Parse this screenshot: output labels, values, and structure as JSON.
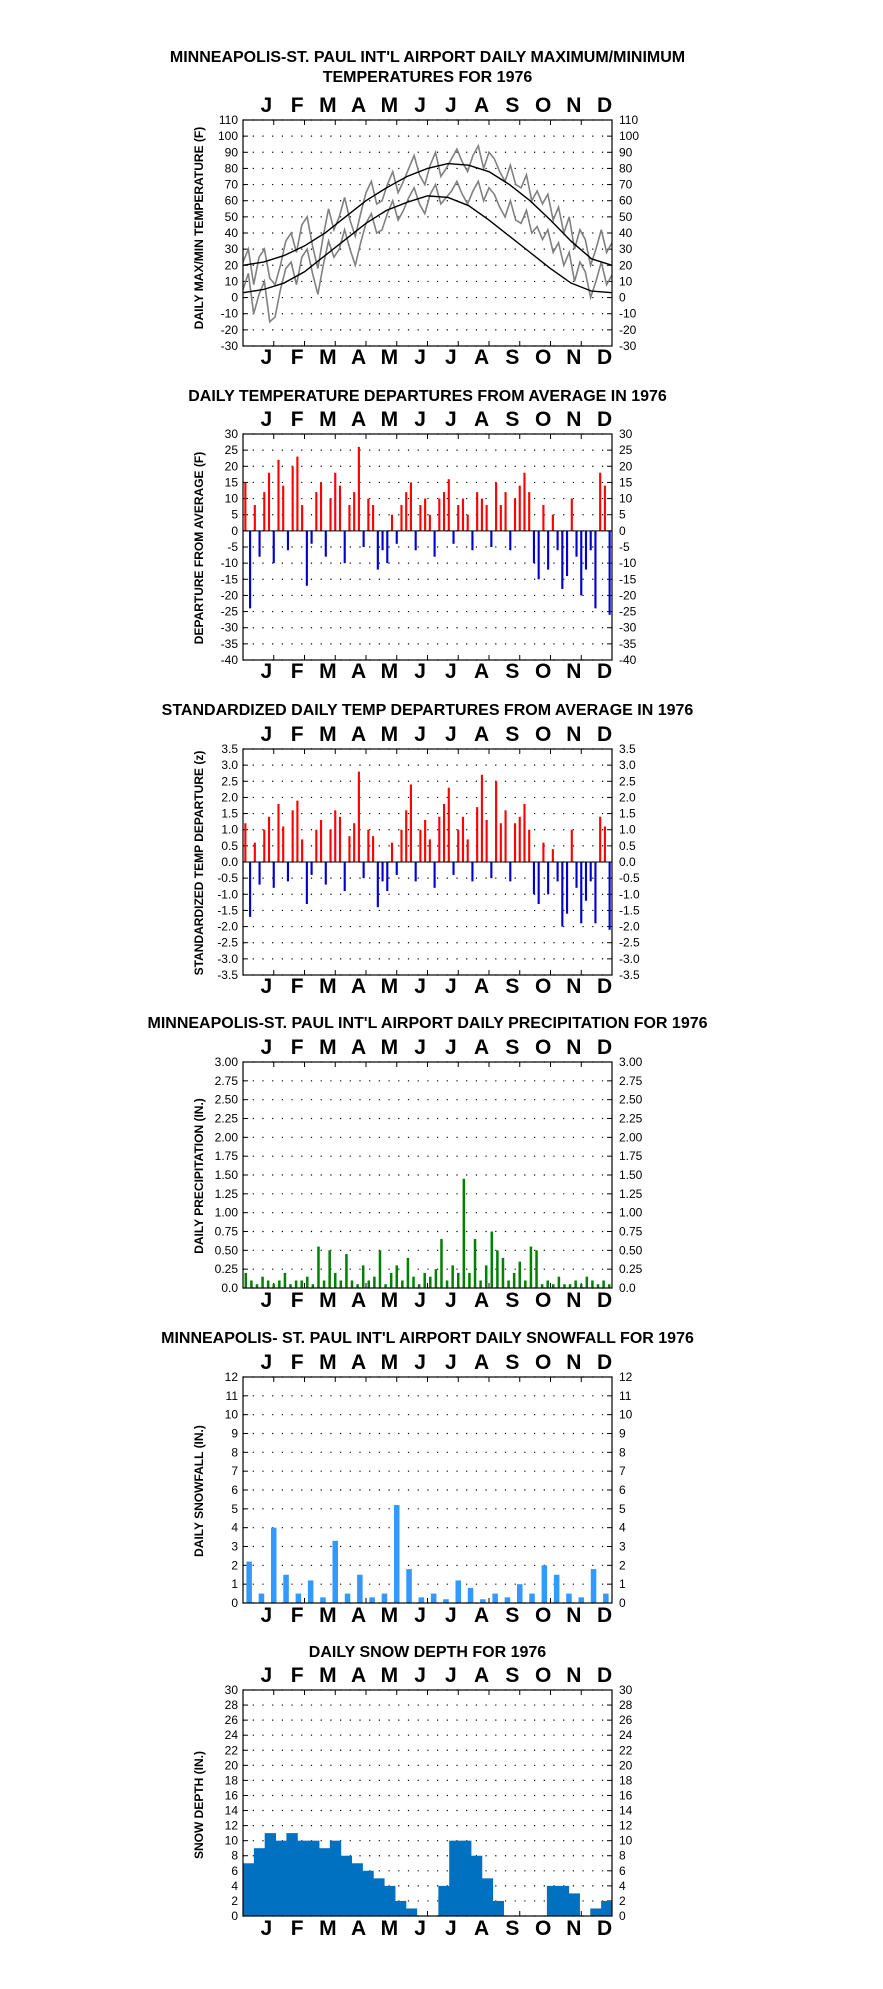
{
  "months": [
    "J",
    "F",
    "M",
    "A",
    "M",
    "J",
    "J",
    "A",
    "S",
    "O",
    "N",
    "D"
  ],
  "colors": {
    "warm": "#ff0000",
    "cold": "#0000cc",
    "precip": "#008000",
    "snow": "#3399ff",
    "depth": "#0070c0",
    "maxmin": "#808080",
    "normal": "#000000"
  },
  "chart_data": [
    {
      "type": "line",
      "title_lines": [
        "MINNEAPOLIS-ST. PAUL INT'L AIRPORT DAILY MAXIMUM/MINIMUM",
        "TEMPERATURES FOR 1976"
      ],
      "ylabel": "DAILY MAX/MIN TEMPERATURE (F)",
      "ylim": [
        -30,
        110
      ],
      "yticks": [
        110,
        100,
        90,
        80,
        70,
        60,
        50,
        40,
        30,
        20,
        10,
        0,
        -10,
        -20,
        -30
      ],
      "series": [
        {
          "values_max": [
            22,
            30,
            8,
            25,
            30,
            12,
            8,
            20,
            35,
            40,
            28,
            45,
            50,
            32,
            18,
            38,
            55,
            42,
            50,
            62,
            48,
            38,
            52,
            65,
            72,
            58,
            60,
            70,
            78,
            65,
            72,
            80,
            88,
            76,
            70,
            82,
            90,
            75,
            80,
            86,
            92,
            84,
            78,
            88,
            94,
            80,
            90,
            86,
            78,
            72,
            82,
            70,
            68,
            76,
            60,
            66,
            58,
            64,
            48,
            56,
            40,
            50,
            30,
            42,
            36,
            20,
            30,
            42,
            28,
            34
          ]
        },
        {
          "values_min": [
            5,
            15,
            -10,
            2,
            10,
            -15,
            -12,
            5,
            18,
            22,
            8,
            25,
            30,
            15,
            2,
            20,
            35,
            25,
            30,
            42,
            30,
            20,
            34,
            46,
            52,
            40,
            42,
            52,
            60,
            48,
            54,
            62,
            68,
            58,
            52,
            64,
            70,
            58,
            62,
            66,
            72,
            64,
            58,
            66,
            72,
            60,
            68,
            64,
            56,
            50,
            60,
            48,
            46,
            54,
            40,
            44,
            36,
            42,
            28,
            34,
            20,
            28,
            10,
            22,
            16,
            0,
            10,
            22,
            8,
            14
          ]
        },
        {
          "values_normal_max": [
            20,
            22,
            26,
            32,
            40,
            50,
            60,
            68,
            75,
            80,
            83,
            82,
            78,
            70,
            60,
            48,
            35,
            24,
            20
          ]
        },
        {
          "values_normal_min": [
            3,
            5,
            9,
            16,
            26,
            36,
            46,
            54,
            59,
            63,
            62,
            57,
            48,
            38,
            28,
            18,
            9,
            4,
            3
          ]
        }
      ]
    },
    {
      "type": "bar",
      "title_lines": [
        "DAILY TEMPERATURE DEPARTURES FROM AVERAGE IN 1976"
      ],
      "ylabel": "DEPARTURE FROM AVERAGE (F)",
      "ylim": [
        -40,
        30
      ],
      "yticks": [
        30,
        25,
        20,
        15,
        10,
        5,
        0,
        -5,
        -10,
        -15,
        -20,
        -25,
        -30,
        -35,
        -40
      ],
      "values": [
        15,
        -24,
        8,
        -8,
        12,
        18,
        -10,
        22,
        14,
        -6,
        20,
        23,
        8,
        -17,
        -4,
        12,
        15,
        -8,
        10,
        18,
        14,
        -10,
        8,
        12,
        26,
        -5,
        10,
        8,
        -12,
        -6,
        -10,
        5,
        -4,
        8,
        12,
        15,
        -6,
        8,
        10,
        5,
        -8,
        10,
        12,
        16,
        -4,
        8,
        10,
        5,
        -6,
        12,
        10,
        8,
        -5,
        15,
        8,
        12,
        -6,
        10,
        14,
        18,
        12,
        -10,
        -15,
        8,
        -12,
        5,
        -6,
        -18,
        -14,
        10,
        -8,
        -20,
        -12,
        -6,
        -24,
        18,
        14,
        -26
      ]
    },
    {
      "type": "bar",
      "title_lines": [
        "STANDARDIZED DAILY TEMP DEPARTURES FROM AVERAGE IN 1976"
      ],
      "ylabel": "STANDARDIZED TEMP DEPARTURE (z)",
      "ylim": [
        -3.5,
        3.5
      ],
      "yticks": [
        "3.5",
        "3.0",
        "2.5",
        "2.0",
        "1.5",
        "1.0",
        "0.5",
        "0.0",
        "-0.5",
        "-1.0",
        "-1.5",
        "-2.0",
        "-2.5",
        "-3.0",
        "-3.5"
      ],
      "values": [
        1.2,
        -1.7,
        0.6,
        -0.7,
        1.0,
        1.4,
        -0.8,
        1.8,
        1.1,
        -0.6,
        1.6,
        1.9,
        0.7,
        -1.3,
        -0.4,
        1.0,
        1.3,
        -0.7,
        1.0,
        1.6,
        1.4,
        -0.9,
        0.8,
        1.2,
        2.8,
        -0.5,
        1.0,
        0.8,
        -1.4,
        -0.6,
        -0.9,
        0.6,
        -0.4,
        1.0,
        1.6,
        2.4,
        -0.6,
        1.0,
        1.3,
        0.7,
        -0.8,
        1.4,
        1.8,
        2.3,
        -0.4,
        1.0,
        1.4,
        0.7,
        -0.6,
        1.7,
        2.7,
        1.3,
        -0.5,
        2.5,
        1.2,
        1.6,
        -0.6,
        1.2,
        1.4,
        1.8,
        1.0,
        -1.0,
        -1.3,
        0.6,
        -1.0,
        0.4,
        -0.6,
        -2.0,
        -1.6,
        1.0,
        -0.8,
        -1.9,
        -1.2,
        -0.6,
        -1.9,
        1.4,
        1.1,
        -2.1
      ]
    },
    {
      "type": "bar",
      "title_lines": [
        "MINNEAPOLIS-ST. PAUL INT'L AIRPORT DAILY PRECIPITATION FOR 1976"
      ],
      "ylabel": "DAILY PRECIPITATION (IN.)",
      "ylim": [
        0,
        3
      ],
      "yticks": [
        "3.00",
        "2.75",
        "2.50",
        "2.25",
        "2.00",
        "1.75",
        "1.50",
        "1.25",
        "1.00",
        "0.75",
        "0.50",
        "0.25",
        "0.0"
      ],
      "values": [
        0.2,
        0.1,
        0.05,
        0.15,
        0.1,
        0.05,
        0.1,
        0.2,
        0.05,
        0.1,
        0.1,
        0.15,
        0.05,
        0.55,
        0.1,
        0.5,
        0.2,
        0.1,
        0.45,
        0.1,
        0.05,
        0.3,
        0.1,
        0.15,
        0.5,
        0.05,
        0.2,
        0.3,
        0.1,
        0.4,
        0.15,
        0.05,
        0.2,
        0.15,
        0.25,
        0.65,
        0.1,
        0.3,
        0.2,
        1.45,
        0.2,
        0.65,
        0.1,
        0.3,
        0.75,
        0.5,
        0.4,
        0.1,
        0.2,
        0.35,
        0.1,
        0.55,
        0.5,
        0.05,
        0.1,
        0.05,
        0.15,
        0.05,
        0.05,
        0.1,
        0.05,
        0.15,
        0.1,
        0.05,
        0.1,
        0.05
      ]
    },
    {
      "type": "bar",
      "title_lines": [
        "MINNEAPOLIS- ST. PAUL INT'L AIRPORT DAILY SNOWFALL FOR 1976"
      ],
      "ylabel": "DAILY SNOWFALL (IN.)",
      "ylim": [
        0,
        12
      ],
      "yticks": [
        12,
        11,
        10,
        9,
        8,
        7,
        6,
        5,
        4,
        3,
        2,
        1,
        0
      ],
      "values": [
        2.2,
        0.5,
        4.0,
        1.5,
        0.5,
        1.2,
        0.3,
        3.3,
        0.5,
        1.5,
        0.3,
        0.5,
        5.2,
        1.8,
        0.3,
        0.5,
        0.2,
        1.2,
        0.8,
        0.2,
        0.5,
        0.3,
        1.0,
        0.5,
        2.0,
        1.5,
        0.5,
        0.3,
        1.8,
        0.5
      ]
    },
    {
      "type": "area",
      "title_lines": [
        "DAILY SNOW DEPTH FOR 1976"
      ],
      "ylabel": "SNOW DEPTH (IN.)",
      "ylim": [
        0,
        30
      ],
      "yticks": [
        30,
        28,
        26,
        24,
        22,
        20,
        18,
        16,
        14,
        12,
        10,
        8,
        6,
        4,
        2,
        0
      ],
      "values": [
        7,
        9,
        11,
        10,
        11,
        10,
        10,
        9,
        10,
        8,
        7,
        6,
        5,
        4,
        2,
        1,
        0,
        0,
        4,
        10,
        10,
        8,
        5,
        2,
        0,
        0,
        0,
        0,
        4,
        4,
        3,
        0,
        1,
        2
      ]
    }
  ]
}
